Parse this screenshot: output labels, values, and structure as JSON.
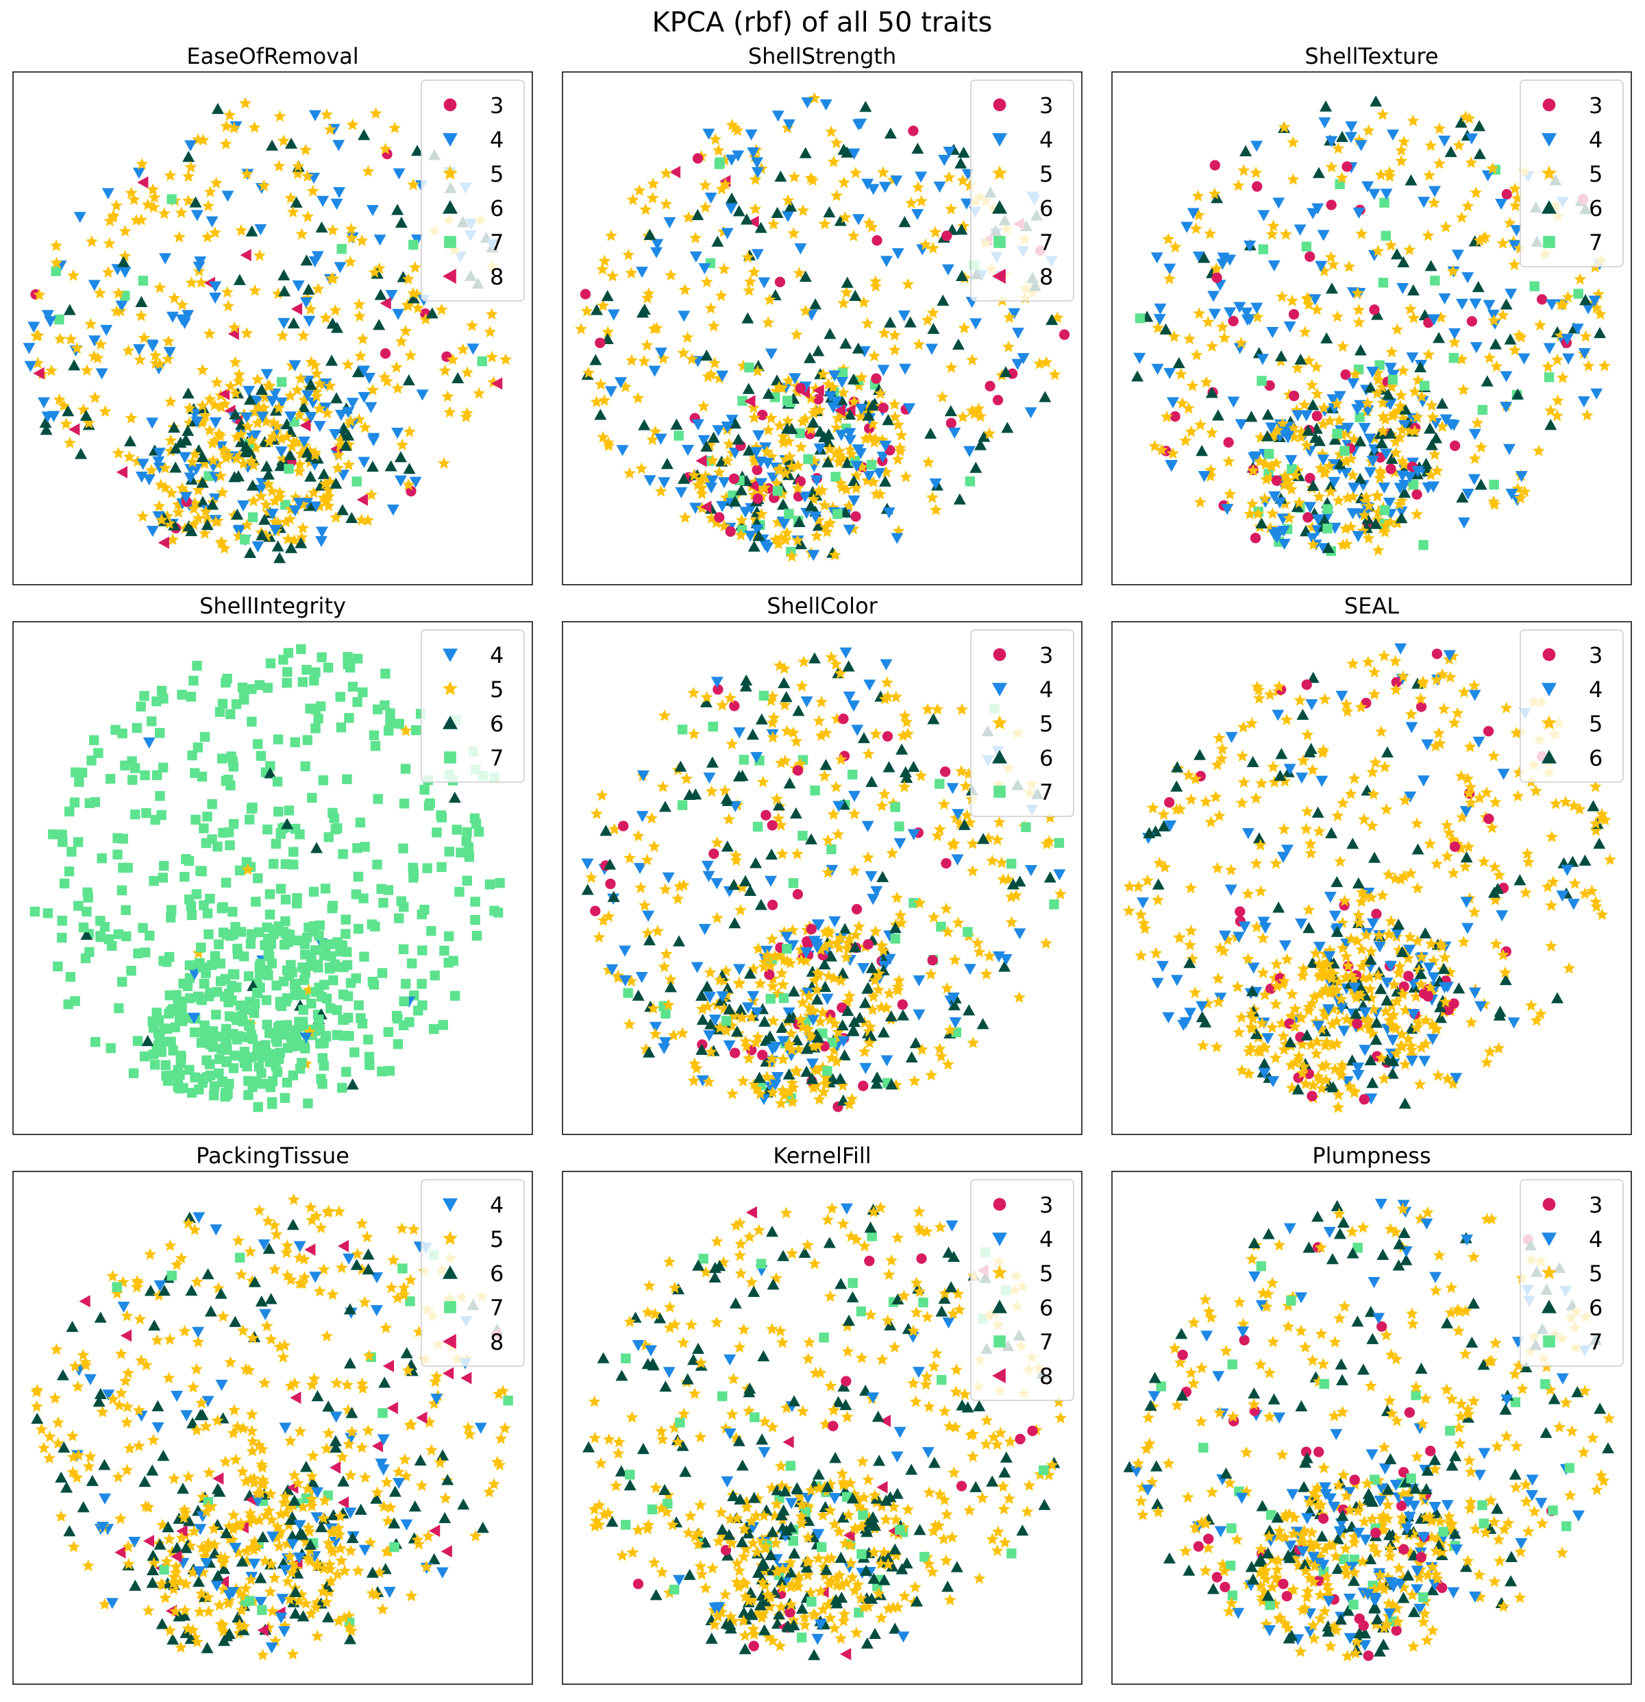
{
  "figure": {
    "title": "KPCA (rbf) of all 50 traits"
  },
  "colors": {
    "3": "#d81b60",
    "4": "#1e88e5",
    "5": "#ffc107",
    "6": "#004d40",
    "7": "#5de28e",
    "8": "#d81b60"
  },
  "markers": {
    "3": "circle",
    "4": "triangle-down",
    "5": "star",
    "6": "triangle-up",
    "7": "square",
    "8": "triangle-left"
  },
  "chart_data": [
    {
      "type": "scatter",
      "title": "EaseOfRemoval",
      "legend_position": "upper-right",
      "legend": [
        "3",
        "4",
        "5",
        "6",
        "7",
        "8"
      ],
      "distribution": {
        "3": 0.01,
        "4": 0.22,
        "5": 0.55,
        "6": 0.17,
        "7": 0.03,
        "8": 0.02
      },
      "point_count": 700,
      "seed": 11
    },
    {
      "type": "scatter",
      "title": "ShellStrength",
      "legend_position": "upper-right",
      "legend": [
        "3",
        "4",
        "5",
        "6",
        "7",
        "8"
      ],
      "distribution": {
        "3": 0.04,
        "4": 0.2,
        "5": 0.5,
        "6": 0.2,
        "7": 0.04,
        "8": 0.02
      },
      "point_count": 700,
      "seed": 23
    },
    {
      "type": "scatter",
      "title": "ShellTexture",
      "legend_position": "upper-right",
      "legend": [
        "3",
        "4",
        "5",
        "6",
        "7"
      ],
      "distribution": {
        "3": 0.05,
        "4": 0.3,
        "5": 0.4,
        "6": 0.19,
        "7": 0.06
      },
      "point_count": 700,
      "seed": 37
    },
    {
      "type": "scatter",
      "title": "ShellIntegrity",
      "legend_position": "upper-right",
      "legend": [
        "4",
        "5",
        "6",
        "7"
      ],
      "distribution": {
        "4": 0.01,
        "5": 0.01,
        "6": 0.02,
        "7": 0.96
      },
      "point_count": 700,
      "seed": 41
    },
    {
      "type": "scatter",
      "title": "ShellColor",
      "legend_position": "upper-right",
      "legend": [
        "3",
        "4",
        "5",
        "6",
        "7"
      ],
      "distribution": {
        "3": 0.07,
        "4": 0.17,
        "5": 0.5,
        "6": 0.2,
        "7": 0.06
      },
      "point_count": 700,
      "seed": 53
    },
    {
      "type": "scatter",
      "title": "SEAL",
      "legend_position": "upper-right",
      "legend": [
        "3",
        "4",
        "5",
        "6"
      ],
      "distribution": {
        "3": 0.06,
        "4": 0.17,
        "5": 0.62,
        "6": 0.15
      },
      "point_count": 700,
      "seed": 67
    },
    {
      "type": "scatter",
      "title": "PackingTissue",
      "legend_position": "upper-right",
      "legend": [
        "4",
        "5",
        "6",
        "7",
        "8"
      ],
      "distribution": {
        "4": 0.12,
        "5": 0.6,
        "6": 0.2,
        "7": 0.04,
        "8": 0.04
      },
      "point_count": 700,
      "seed": 71
    },
    {
      "type": "scatter",
      "title": "KernelFill",
      "legend_position": "upper-right",
      "legend": [
        "3",
        "4",
        "5",
        "6",
        "7",
        "8"
      ],
      "distribution": {
        "3": 0.04,
        "4": 0.08,
        "5": 0.55,
        "6": 0.26,
        "7": 0.05,
        "8": 0.02
      },
      "point_count": 700,
      "seed": 83
    },
    {
      "type": "scatter",
      "title": "Plumpness",
      "legend_position": "upper-right",
      "legend": [
        "3",
        "4",
        "5",
        "6",
        "7"
      ],
      "distribution": {
        "3": 0.06,
        "4": 0.17,
        "5": 0.5,
        "6": 0.22,
        "7": 0.05
      },
      "point_count": 700,
      "seed": 97
    }
  ]
}
